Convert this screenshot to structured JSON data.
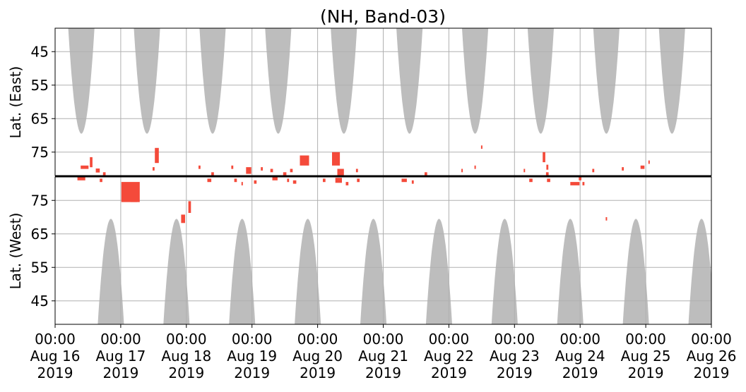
{
  "chart_data": {
    "type": "heatmap",
    "title": "(NH, Band-03)",
    "x_axis": {
      "range": [
        "2019-08-16 00:00",
        "2019-08-26 00:00"
      ],
      "ticks": [
        {
          "time": "00:00",
          "date": "Aug 16",
          "year": "2019"
        },
        {
          "time": "00:00",
          "date": "Aug 17",
          "year": "2019"
        },
        {
          "time": "00:00",
          "date": "Aug 18",
          "year": "2019"
        },
        {
          "time": "00:00",
          "date": "Aug 19",
          "year": "2019"
        },
        {
          "time": "00:00",
          "date": "Aug 20",
          "year": "2019"
        },
        {
          "time": "00:00",
          "date": "Aug 21",
          "year": "2019"
        },
        {
          "time": "00:00",
          "date": "Aug 22",
          "year": "2019"
        },
        {
          "time": "00:00",
          "date": "Aug 23",
          "year": "2019"
        },
        {
          "time": "00:00",
          "date": "Aug 24",
          "year": "2019"
        },
        {
          "time": "00:00",
          "date": "Aug 25",
          "year": "2019"
        },
        {
          "time": "00:00",
          "date": "Aug 26",
          "year": "2019"
        }
      ]
    },
    "panels": [
      {
        "name": "east",
        "ylabel": "Lat. (East)",
        "ylim": [
          38,
          82
        ],
        "yticks": [
          45,
          55,
          65,
          75
        ],
        "direction": "increasing-down",
        "grid": true
      },
      {
        "name": "west",
        "ylabel": "Lat. (West)",
        "ylim": [
          38,
          82
        ],
        "yticks": [
          75,
          65,
          55,
          45
        ],
        "direction": "increasing-up",
        "grid": true
      }
    ],
    "colors": {
      "coverage": "#bdbdbd",
      "echo": "#f44a3a",
      "echo_dark": "#c01010",
      "grid": "#b0b0b0",
      "axes": "#000000"
    },
    "coverage_east": [
      {
        "center_day": 0.4,
        "half_width_days": 0.2,
        "min_lat": 69.5
      },
      {
        "center_day": 1.4,
        "half_width_days": 0.2,
        "min_lat": 69.5
      },
      {
        "center_day": 2.4,
        "half_width_days": 0.2,
        "min_lat": 69.5
      },
      {
        "center_day": 3.4,
        "half_width_days": 0.2,
        "min_lat": 69.5
      },
      {
        "center_day": 4.4,
        "half_width_days": 0.2,
        "min_lat": 69.5
      },
      {
        "center_day": 5.4,
        "half_width_days": 0.2,
        "min_lat": 69.5
      },
      {
        "center_day": 6.4,
        "half_width_days": 0.2,
        "min_lat": 69.5
      },
      {
        "center_day": 7.4,
        "half_width_days": 0.2,
        "min_lat": 69.5
      },
      {
        "center_day": 8.4,
        "half_width_days": 0.2,
        "min_lat": 69.5
      },
      {
        "center_day": 9.4,
        "half_width_days": 0.2,
        "min_lat": 69.5
      }
    ],
    "coverage_west": [
      {
        "center_day": 0.85,
        "half_width_days": 0.2,
        "min_lat": 69.5
      },
      {
        "center_day": 1.85,
        "half_width_days": 0.2,
        "min_lat": 69.5
      },
      {
        "center_day": 2.85,
        "half_width_days": 0.2,
        "min_lat": 69.5
      },
      {
        "center_day": 3.85,
        "half_width_days": 0.2,
        "min_lat": 69.5
      },
      {
        "center_day": 4.85,
        "half_width_days": 0.2,
        "min_lat": 69.5
      },
      {
        "center_day": 5.85,
        "half_width_days": 0.2,
        "min_lat": 69.5
      },
      {
        "center_day": 6.85,
        "half_width_days": 0.2,
        "min_lat": 69.5
      },
      {
        "center_day": 7.85,
        "half_width_days": 0.2,
        "min_lat": 69.5
      },
      {
        "center_day": 8.85,
        "half_width_days": 0.2,
        "min_lat": 69.5
      },
      {
        "center_day": 9.85,
        "half_width_days": 0.2,
        "min_lat": 69.5
      }
    ],
    "echoes_east": [
      {
        "day": 0.45,
        "lat": 79.5,
        "dday": 0.12,
        "dlat": 1.0
      },
      {
        "day": 0.55,
        "lat": 78.0,
        "dday": 0.04,
        "dlat": 3.0
      },
      {
        "day": 0.65,
        "lat": 80.5,
        "dday": 0.06,
        "dlat": 1.2
      },
      {
        "day": 0.75,
        "lat": 81.5,
        "dday": 0.04,
        "dlat": 1.0
      },
      {
        "day": 1.5,
        "lat": 80.0,
        "dday": 0.03,
        "dlat": 1.0
      },
      {
        "day": 1.55,
        "lat": 76.0,
        "dday": 0.06,
        "dlat": 4.5
      },
      {
        "day": 2.2,
        "lat": 79.5,
        "dday": 0.03,
        "dlat": 1.0
      },
      {
        "day": 2.4,
        "lat": 81.5,
        "dday": 0.04,
        "dlat": 1.0
      },
      {
        "day": 2.7,
        "lat": 79.5,
        "dday": 0.03,
        "dlat": 1.0
      },
      {
        "day": 2.95,
        "lat": 80.5,
        "dday": 0.08,
        "dlat": 2.0
      },
      {
        "day": 3.15,
        "lat": 80.0,
        "dday": 0.03,
        "dlat": 1.0
      },
      {
        "day": 3.3,
        "lat": 80.5,
        "dday": 0.04,
        "dlat": 1.0
      },
      {
        "day": 3.5,
        "lat": 81.5,
        "dday": 0.05,
        "dlat": 1.0
      },
      {
        "day": 3.6,
        "lat": 80.5,
        "dday": 0.04,
        "dlat": 1.0
      },
      {
        "day": 3.8,
        "lat": 77.5,
        "dday": 0.14,
        "dlat": 3.0
      },
      {
        "day": 4.28,
        "lat": 77.0,
        "dday": 0.12,
        "dlat": 4.0
      },
      {
        "day": 4.35,
        "lat": 81.0,
        "dday": 0.1,
        "dlat": 2.0
      },
      {
        "day": 4.6,
        "lat": 80.5,
        "dday": 0.03,
        "dlat": 1.0
      },
      {
        "day": 5.65,
        "lat": 81.5,
        "dday": 0.04,
        "dlat": 1.0
      },
      {
        "day": 6.2,
        "lat": 80.5,
        "dday": 0.02,
        "dlat": 1.0
      },
      {
        "day": 6.4,
        "lat": 79.5,
        "dday": 0.02,
        "dlat": 1.0
      },
      {
        "day": 6.5,
        "lat": 73.5,
        "dday": 0.02,
        "dlat": 1.0
      },
      {
        "day": 7.15,
        "lat": 80.5,
        "dday": 0.02,
        "dlat": 1.0
      },
      {
        "day": 7.45,
        "lat": 76.5,
        "dday": 0.04,
        "dlat": 3.0
      },
      {
        "day": 7.5,
        "lat": 79.5,
        "dday": 0.03,
        "dlat": 1.5
      },
      {
        "day": 7.5,
        "lat": 81.5,
        "dday": 0.04,
        "dlat": 1.0
      },
      {
        "day": 8.2,
        "lat": 80.5,
        "dday": 0.03,
        "dlat": 1.0
      },
      {
        "day": 8.65,
        "lat": 80.0,
        "dday": 0.03,
        "dlat": 1.0
      },
      {
        "day": 8.95,
        "lat": 79.5,
        "dday": 0.06,
        "dlat": 1.0
      },
      {
        "day": 9.05,
        "lat": 78.0,
        "dday": 0.02,
        "dlat": 1.0
      }
    ],
    "echoes_west": [
      {
        "day": 0.4,
        "lat": 81.5,
        "dday": 0.12,
        "dlat": 1.0
      },
      {
        "day": 0.7,
        "lat": 81.0,
        "dday": 0.04,
        "dlat": 1.0
      },
      {
        "day": 1.15,
        "lat": 77.5,
        "dday": 0.28,
        "dlat": 6.0
      },
      {
        "day": 1.2,
        "lat": 75.5,
        "dday": 0.1,
        "dlat": 2.0
      },
      {
        "day": 1.95,
        "lat": 69.5,
        "dday": 0.06,
        "dlat": 2.5
      },
      {
        "day": 2.05,
        "lat": 73.0,
        "dday": 0.04,
        "dlat": 3.5
      },
      {
        "day": 2.35,
        "lat": 81.0,
        "dday": 0.06,
        "dlat": 1.0
      },
      {
        "day": 2.75,
        "lat": 81.0,
        "dday": 0.04,
        "dlat": 1.0
      },
      {
        "day": 2.85,
        "lat": 80.0,
        "dday": 0.02,
        "dlat": 1.0
      },
      {
        "day": 3.05,
        "lat": 80.5,
        "dday": 0.04,
        "dlat": 1.0
      },
      {
        "day": 3.35,
        "lat": 81.5,
        "dday": 0.08,
        "dlat": 1.0
      },
      {
        "day": 3.55,
        "lat": 81.0,
        "dday": 0.03,
        "dlat": 1.0
      },
      {
        "day": 3.65,
        "lat": 80.5,
        "dday": 0.05,
        "dlat": 1.0
      },
      {
        "day": 4.1,
        "lat": 81.0,
        "dday": 0.04,
        "dlat": 1.0
      },
      {
        "day": 4.32,
        "lat": 81.0,
        "dday": 0.1,
        "dlat": 1.5
      },
      {
        "day": 4.45,
        "lat": 80.0,
        "dday": 0.04,
        "dlat": 1.0
      },
      {
        "day": 4.62,
        "lat": 81.0,
        "dday": 0.04,
        "dlat": 1.0
      },
      {
        "day": 5.32,
        "lat": 81.0,
        "dday": 0.08,
        "dlat": 1.0
      },
      {
        "day": 5.45,
        "lat": 80.5,
        "dday": 0.03,
        "dlat": 1.0
      },
      {
        "day": 7.25,
        "lat": 81.0,
        "dday": 0.05,
        "dlat": 1.0
      },
      {
        "day": 7.52,
        "lat": 81.0,
        "dday": 0.05,
        "dlat": 1.0
      },
      {
        "day": 7.92,
        "lat": 80.0,
        "dday": 0.14,
        "dlat": 1.0
      },
      {
        "day": 8.0,
        "lat": 81.5,
        "dday": 0.04,
        "dlat": 1.0
      },
      {
        "day": 8.05,
        "lat": 80.0,
        "dday": 0.03,
        "dlat": 1.0
      },
      {
        "day": 8.4,
        "lat": 69.5,
        "dday": 0.02,
        "dlat": 1.0
      }
    ]
  }
}
